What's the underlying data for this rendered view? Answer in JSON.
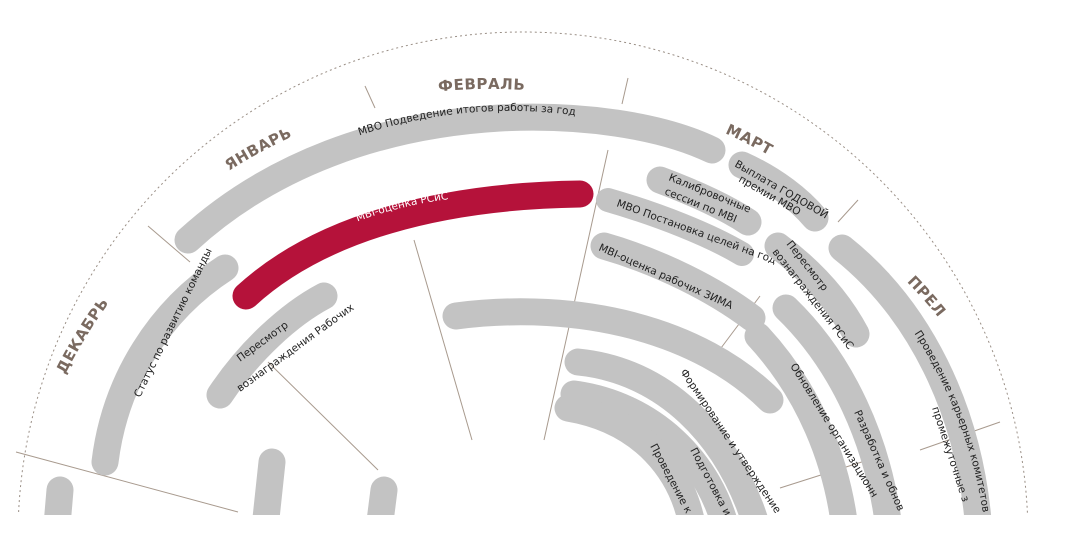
{
  "colors": {
    "gray": "#c3c3c3",
    "accent": "#b5123a",
    "month_text": "#7a6a60",
    "divider": "#a89a8e"
  },
  "months": {
    "dec": "ДЕКАБРЬ",
    "jan": "ЯНВАРЬ",
    "feb": "ФЕВРАЛЬ",
    "mar": "МАРТ",
    "apr": "АПРЕЛЬ"
  },
  "bands": {
    "mbo_results": "МВО Подведение итогов работы за год",
    "mbi_pcs": "MBI-оценка РСиС",
    "team_status": "Статус по развитию команды",
    "review_workers_1": "Пересмотр",
    "review_workers_2": "вознаграждения Рабочих",
    "calib_1": "Калибровочные",
    "calib_2": "сессии по MBI",
    "bonus_1": "Выплата ГОДОВОЙ",
    "bonus_2": "премии МВО",
    "mbo_goals": "МВО Постановка целей на год",
    "mbi_workers": "MBI-оценка рабочих ЗИМА",
    "review_pcs_1": "Пересмотр",
    "review_pcs_2": "вознаграждения РСиС",
    "career_1": "Проведение карьерных комитетов п",
    "career_2": "промежуточные з",
    "develop": "Разработка и обнов",
    "org_update": "Обновление организационн",
    "forming": "Формирование и утверждение",
    "prep": "Подготовка и",
    "conduct": "Проведение к"
  }
}
